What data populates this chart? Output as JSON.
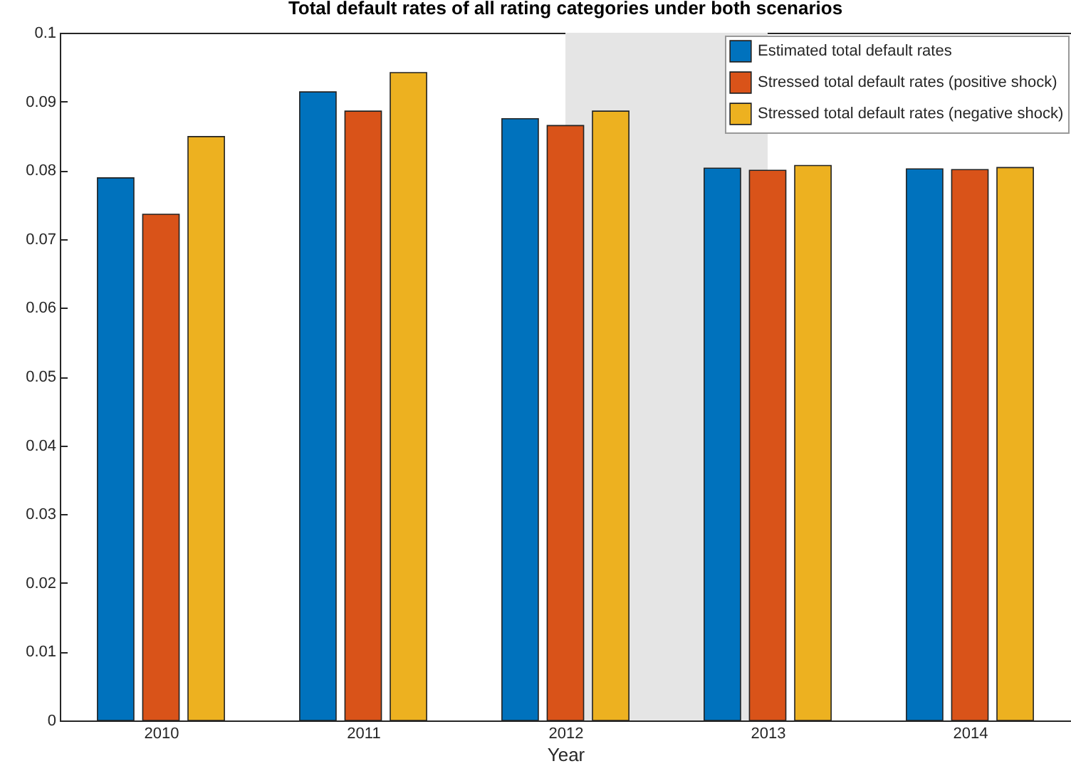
{
  "chart_data": {
    "type": "bar",
    "title": "Total default rates of all rating categories under both scenarios",
    "xlabel": "Year",
    "x": [
      2010,
      2011,
      2012,
      2013,
      2014
    ],
    "xlim": [
      2009.5,
      2014.5
    ],
    "xticks": [
      2010,
      2011,
      2012,
      2013,
      2014
    ],
    "ylim": [
      0,
      0.1
    ],
    "yticks": [
      0,
      0.01,
      0.02,
      0.03,
      0.04,
      0.05,
      0.06,
      0.07,
      0.08,
      0.09,
      0.1
    ],
    "series": [
      {
        "name": "Estimated total default rates",
        "color": "#0072bd",
        "values": [
          0.0789,
          0.0914,
          0.0875,
          0.0803,
          0.0802
        ]
      },
      {
        "name": "Stressed total default rates (positive shock)",
        "color": "#d95319",
        "values": [
          0.0736,
          0.0886,
          0.0865,
          0.08,
          0.0801
        ]
      },
      {
        "name": "Stressed total default rates (negative shock)",
        "color": "#edb120",
        "values": [
          0.0849,
          0.0942,
          0.0886,
          0.0807,
          0.0804
        ]
      }
    ],
    "bands": [
      {
        "axis": "x",
        "from": 2012,
        "to": 2013,
        "color": "#e5e5e5"
      }
    ],
    "legend": "top right",
    "grid": false
  }
}
